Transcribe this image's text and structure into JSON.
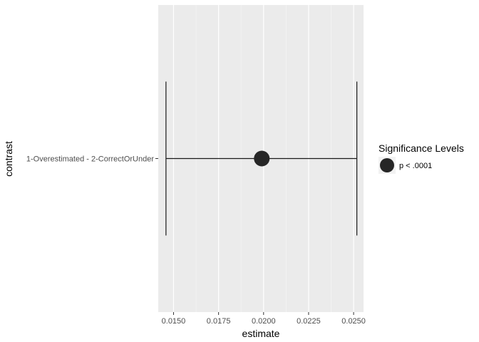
{
  "chart_data": {
    "type": "errorbar",
    "xlabel": "estimate",
    "ylabel": "contrast",
    "xlim": [
      0.01415,
      0.02555
    ],
    "x_ticks": [
      "0.0150",
      "0.0175",
      "0.0200",
      "0.0225",
      "0.0250"
    ],
    "x_tick_values": [
      0.015,
      0.0175,
      0.02,
      0.0225,
      0.025
    ],
    "categories": [
      "1-Overestimated - 2-CorrectOrUnder"
    ],
    "points": [
      {
        "contrast": "1-Overestimated - 2-CorrectOrUnder",
        "estimate": 0.0199,
        "lower": 0.01458,
        "upper": 0.02518,
        "significance": "p < .0001"
      }
    ],
    "legend": {
      "title": "Significance Levels",
      "entries": [
        {
          "label": "p < .0001",
          "color": "#262626"
        }
      ],
      "position": "right"
    },
    "grid": true,
    "colors": {
      "panel": "#ebebeb",
      "grid_major": "#ffffff",
      "point": "#262626",
      "errorbar": "#1a1a1a",
      "tick_label": "#4d4d4d"
    }
  }
}
